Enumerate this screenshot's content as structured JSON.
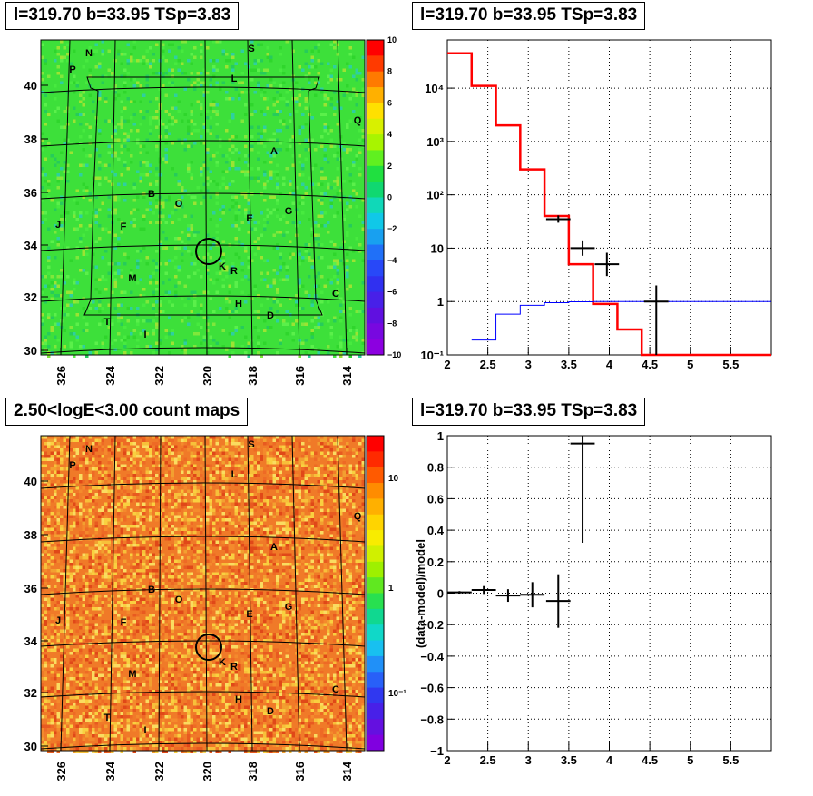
{
  "panels": {
    "tl_title": "l=319.70 b=33.95 TSp=3.83",
    "tr_title": "l=319.70 b=33.95 TSp=3.83",
    "bl_title": "2.50<logE<3.00 count maps",
    "br_title": "l=319.70 b=33.95 TSp=3.83"
  },
  "map": {
    "x_ticks": [
      "326",
      "324",
      "322",
      "320",
      "318",
      "316",
      "314"
    ],
    "y_ticks": [
      "30",
      "32",
      "34",
      "36",
      "38",
      "40"
    ],
    "sources": [
      "P",
      "N",
      "S",
      "L",
      "Q",
      "A",
      "B",
      "O",
      "J",
      "F",
      "E",
      "G",
      "K",
      "R",
      "M",
      "H",
      "D",
      "C",
      "T",
      "I"
    ],
    "tl_colorbar_ticks": [
      "10",
      "8",
      "6",
      "4",
      "2",
      "0",
      "−2",
      "−4",
      "−6",
      "−8",
      "−10"
    ],
    "bl_colorbar_ticks": [
      "10",
      "1",
      "10⁻¹"
    ],
    "colors": {
      "residual_bg": "#3de03a",
      "count_bg": "#f07a28",
      "circle": "#000000"
    }
  },
  "chart_data": [
    {
      "type": "line",
      "panel": "spectrum",
      "log_y": true,
      "xlim": [
        2,
        6
      ],
      "ylim": [
        0.1,
        80000
      ],
      "x_ticks": [
        "2",
        "2.5",
        "3",
        "3.5",
        "4",
        "4.5",
        "5",
        "5.5"
      ],
      "y_ticks": [
        "10⁻¹",
        "1",
        "10",
        "10²",
        "10³",
        "10⁴"
      ],
      "grid": true,
      "series": [
        {
          "color": "#ff0000",
          "style": "step",
          "edges": [
            2.0,
            2.3,
            2.6,
            2.9,
            3.2,
            3.5,
            3.8,
            4.1,
            4.4,
            6.0
          ],
          "values": [
            45000,
            11000,
            2000,
            300,
            40,
            5,
            0.9,
            0.3,
            0.1
          ]
        },
        {
          "color": "#0000ff",
          "style": "step",
          "edges": [
            2.3,
            2.6,
            2.9,
            3.2,
            3.5,
            3.8,
            4.1,
            4.4,
            4.7,
            6.0
          ],
          "values": [
            0.19,
            0.58,
            0.85,
            0.95,
            0.99,
            1.0,
            1.0,
            1.0,
            1.0
          ]
        },
        {
          "color": "#000000",
          "style": "errorbars",
          "points": [
            {
              "x": 3.37,
              "y": 35,
              "xerr": 0.15,
              "ylo": 30,
              "yhi": 41
            },
            {
              "x": 3.67,
              "y": 10,
              "xerr": 0.15,
              "ylo": 7.2,
              "yhi": 14
            },
            {
              "x": 3.97,
              "y": 5,
              "xerr": 0.15,
              "ylo": 3.0,
              "yhi": 8.2
            },
            {
              "x": 4.58,
              "y": 1.0,
              "xerr": 0.15,
              "ylo": 0.1,
              "yhi": 2.0
            }
          ]
        }
      ]
    },
    {
      "type": "scatter",
      "panel": "residual",
      "xlim": [
        2,
        6
      ],
      "ylim": [
        -1,
        1
      ],
      "x_ticks": [
        "2",
        "2.5",
        "3",
        "3.5",
        "4",
        "4.5",
        "5",
        "5.5"
      ],
      "y_ticks": [
        "−1",
        "−0.8",
        "−0.6",
        "−0.4",
        "−0.2",
        "0",
        "0.2",
        "0.4",
        "0.6",
        "0.8",
        "1"
      ],
      "ylabel": "(data-model)/model",
      "grid": true,
      "series": [
        {
          "color": "#000000",
          "points": [
            {
              "x": 2.15,
              "y": 0.005,
              "xerr": 0.15,
              "yerr": 0.008
            },
            {
              "x": 2.45,
              "y": 0.02,
              "xerr": 0.15,
              "yerr": 0.025
            },
            {
              "x": 2.75,
              "y": -0.015,
              "xerr": 0.15,
              "yerr": 0.04
            },
            {
              "x": 3.05,
              "y": -0.01,
              "xerr": 0.15,
              "yerr": 0.08
            },
            {
              "x": 3.37,
              "y": -0.05,
              "xerr": 0.15,
              "yerr": 0.17
            },
            {
              "x": 3.67,
              "y": 0.95,
              "xerr": 0.15,
              "yerr": 0.63
            }
          ]
        }
      ]
    }
  ]
}
